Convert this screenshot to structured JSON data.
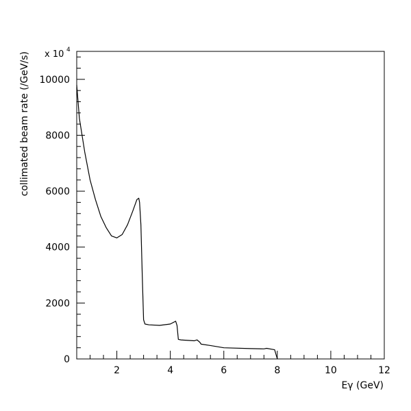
{
  "chart_data": {
    "type": "line",
    "title": "",
    "xlabel": "Eγ (GeV)",
    "ylabel": "collimated beam rate (/GeV/s)",
    "y_multiplier": {
      "base": "x 10",
      "exponent": "4"
    },
    "xlim": [
      0.5,
      12
    ],
    "ylim": [
      0,
      11000
    ],
    "x_ticks": [
      2,
      4,
      6,
      8,
      10,
      12
    ],
    "x_tick_labels": [
      "2",
      "4",
      "6",
      "8",
      "10",
      "12"
    ],
    "y_ticks": [
      0,
      2000,
      4000,
      6000,
      8000,
      10000
    ],
    "y_tick_labels": [
      "0",
      "2000",
      "4000",
      "6000",
      "8000",
      "10000"
    ],
    "grid": false,
    "series": [
      {
        "x": [
          0.5,
          0.6,
          0.7,
          0.8,
          0.9,
          1.0,
          1.2,
          1.4,
          1.6,
          1.8,
          2.0,
          2.2,
          2.4,
          2.6,
          2.75,
          2.82,
          2.85,
          2.9,
          2.95,
          3.0,
          3.05,
          3.2,
          3.6,
          4.0,
          4.2,
          4.25,
          4.3,
          4.4,
          4.9,
          5.0,
          5.1,
          5.15,
          5.5,
          6.0,
          7.0,
          7.5,
          7.6,
          7.9,
          8.0
        ],
        "y": [
          9800,
          8600,
          8000,
          7400,
          6900,
          6400,
          5700,
          5100,
          4700,
          4400,
          4330,
          4450,
          4800,
          5300,
          5700,
          5750,
          5600,
          4800,
          3000,
          1400,
          1250,
          1220,
          1200,
          1250,
          1350,
          1200,
          700,
          680,
          650,
          680,
          600,
          530,
          480,
          400,
          370,
          360,
          380,
          330,
          0
        ]
      }
    ]
  }
}
